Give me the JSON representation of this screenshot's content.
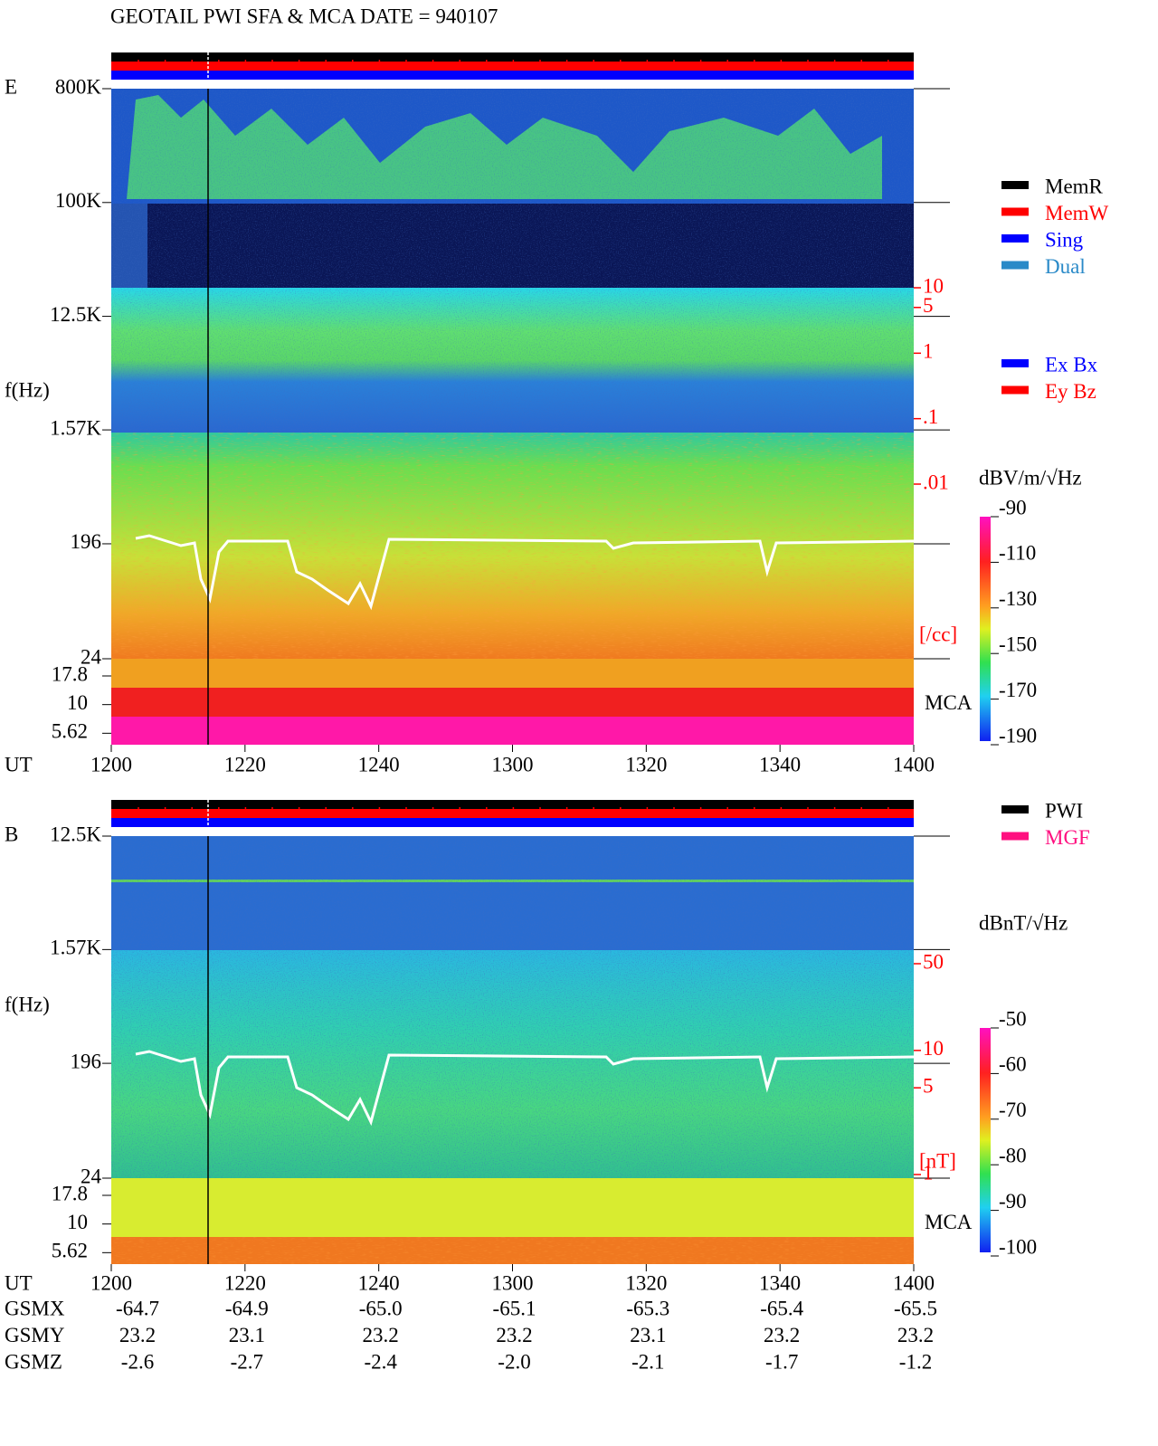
{
  "header": {
    "title": "GEOTAIL   PWI SFA & MCA    DATE = 940107"
  },
  "panels": [
    {
      "label": "E",
      "axis_label": "f(Hz)",
      "freq_ticks": [
        {
          "value": 800000,
          "label": "800K"
        },
        {
          "value": 100000,
          "label": "100K"
        },
        {
          "value": 12500,
          "label": "12.5K"
        },
        {
          "value": 1570,
          "label": "1.57K"
        },
        196,
        24
      ],
      "flim": [
        24,
        800000
      ],
      "mca_channels": [
        17.8,
        10,
        5.62
      ],
      "mca_label": "MCA",
      "right_ticks": [
        10,
        5,
        1,
        {
          "value": 0.1,
          "label": ".1"
        },
        {
          "value": 0.01,
          "label": ".01"
        }
      ],
      "right_lim": [
        0.01,
        10
      ],
      "right_unit": "[/cc]",
      "status_legend": [
        {
          "name": "MemR",
          "color": "#000000"
        },
        {
          "name": "MemW",
          "color": "#ff0000"
        },
        {
          "name": "Sing",
          "color": "#0000ff"
        },
        {
          "name": "Dual",
          "color": "#2a8ac8"
        }
      ],
      "component_legend": [
        {
          "name": "Ex Bx",
          "color": "#0000ff"
        },
        {
          "name": "Ey Bz",
          "color": "#ff0000"
        }
      ],
      "colorbar": {
        "unit": "dBV/m/√Hz",
        "ticks": [
          -90,
          -110,
          -130,
          -150,
          -170,
          -190
        ],
        "lim": [
          -190,
          -90
        ]
      },
      "time_label": "UT",
      "time_ticks": [
        "1200",
        "1220",
        "1240",
        "1300",
        "1320",
        "1340",
        "1400"
      ]
    },
    {
      "label": "B",
      "axis_label": "f(Hz)",
      "freq_ticks": [
        {
          "value": 12500,
          "label": "12.5K"
        },
        {
          "value": 1570,
          "label": "1.57K"
        },
        196,
        24
      ],
      "flim": [
        24,
        12500
      ],
      "mca_channels": [
        17.8,
        10,
        5.62
      ],
      "mca_label": "MCA",
      "right_ticks": [
        50,
        10,
        5,
        1
      ],
      "right_lim": [
        1,
        50
      ],
      "right_unit": "[nT]",
      "status_legend": [
        {
          "name": "PWI",
          "color": "#000000"
        },
        {
          "name": "MGF",
          "color": "#ff1080"
        }
      ],
      "colorbar": {
        "unit": "dBnT/√Hz",
        "ticks": [
          -50,
          -60,
          -70,
          -80,
          -90,
          -100
        ],
        "lim": [
          -100,
          -50
        ]
      },
      "time_label": "UT",
      "time_ticks": [
        "1200",
        "1220",
        "1240",
        "1300",
        "1320",
        "1340",
        "1400"
      ]
    }
  ],
  "orbit": {
    "rows": [
      {
        "label": "GSMX",
        "values": [
          "-64.7",
          "-64.9",
          "-65.0",
          "-65.1",
          "-65.3",
          "-65.4",
          "-65.5"
        ]
      },
      {
        "label": "GSMY",
        "values": [
          "23.2",
          "23.1",
          "23.2",
          "23.2",
          "23.1",
          "23.2",
          "23.2"
        ]
      },
      {
        "label": "GSMZ",
        "values": [
          "-2.6",
          "-2.7",
          "-2.4",
          "-2.0",
          "-2.1",
          "-1.7",
          "-1.2"
        ]
      }
    ]
  }
}
